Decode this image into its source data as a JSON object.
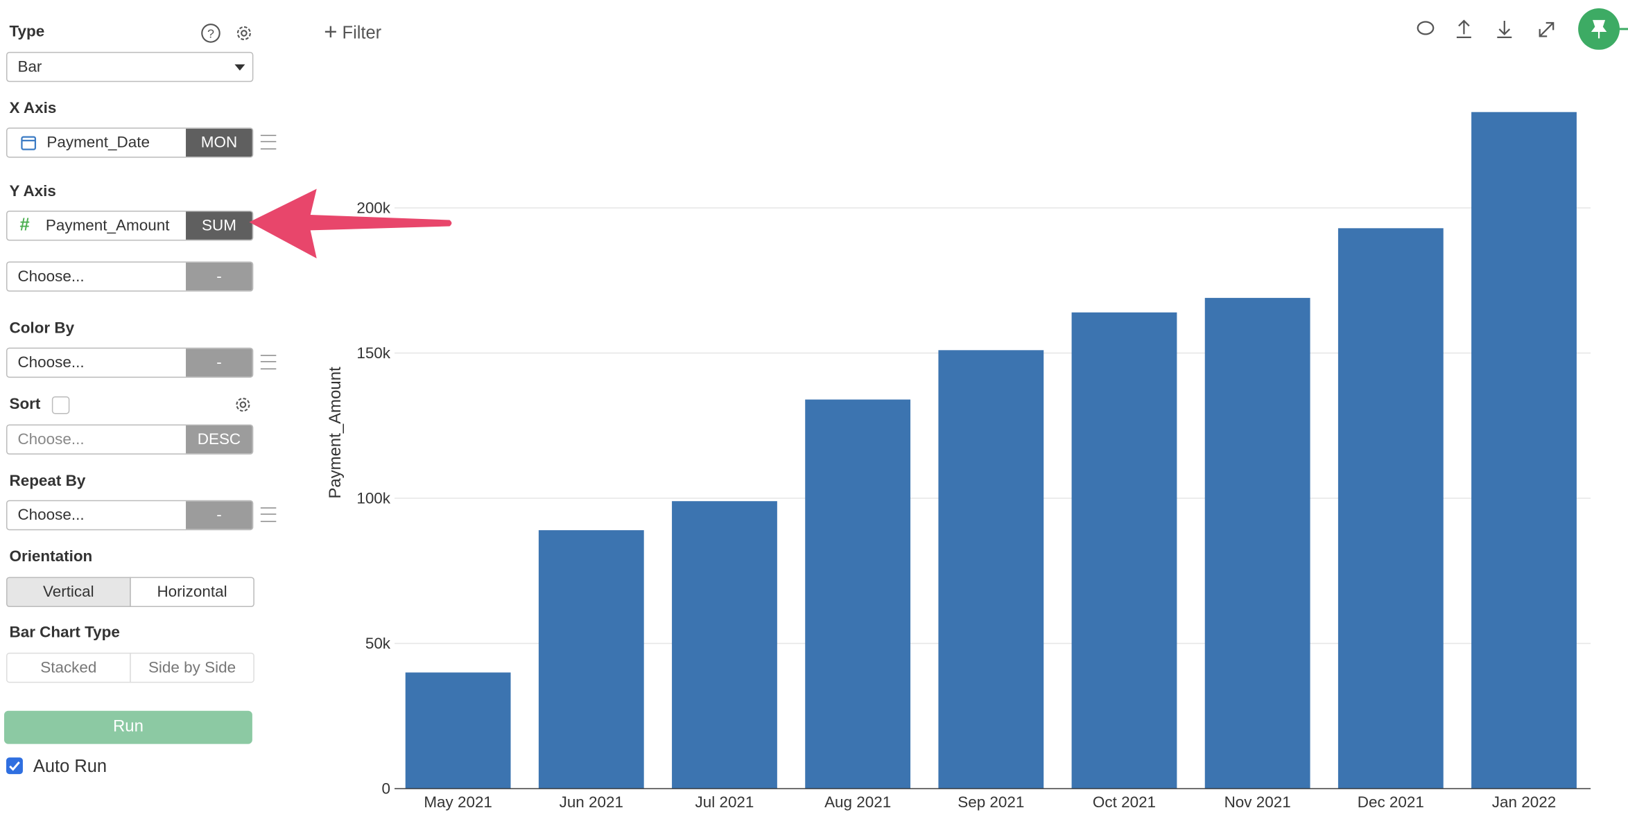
{
  "sidebar": {
    "type": {
      "label": "Type",
      "value": "Bar"
    },
    "x_axis": {
      "label": "X Axis",
      "field": "Payment_Date",
      "agg": "MON"
    },
    "y_axis": {
      "label": "Y Axis",
      "field": "Payment_Amount",
      "agg": "SUM",
      "extra_field": "Choose...",
      "extra_agg": "-"
    },
    "color_by": {
      "label": "Color By",
      "field": "Choose...",
      "agg": "-"
    },
    "sort": {
      "label": "Sort",
      "field": "Choose...",
      "order": "DESC"
    },
    "repeat_by": {
      "label": "Repeat By",
      "field": "Choose...",
      "agg": "-"
    },
    "orientation": {
      "label": "Orientation",
      "options": [
        "Vertical",
        "Horizontal"
      ]
    },
    "bar_chart_type": {
      "label": "Bar Chart Type",
      "options": [
        "Stacked",
        "Side by Side"
      ]
    },
    "run": "Run",
    "auto_run": "Auto Run"
  },
  "toolbar": {
    "filter": "Filter"
  },
  "chart_data": {
    "type": "bar",
    "y_label": "Payment_Amount",
    "categories": [
      "May 2021",
      "Jun 2021",
      "Jul 2021",
      "Aug 2021",
      "Sep 2021",
      "Oct 2021",
      "Nov 2021",
      "Dec 2021",
      "Jan 2022"
    ],
    "values": [
      40000,
      89000,
      99000,
      134000,
      151000,
      164000,
      169000,
      193000,
      233000
    ],
    "color": "#3c74b0",
    "ylim": [
      0,
      238000
    ],
    "yticks": [
      0,
      {
        "value": 50000,
        "label": "50k"
      },
      {
        "value": 100000,
        "label": "100k"
      },
      {
        "value": 150000,
        "label": "150k"
      },
      {
        "value": 200000,
        "label": "200k"
      }
    ],
    "grid": true
  }
}
